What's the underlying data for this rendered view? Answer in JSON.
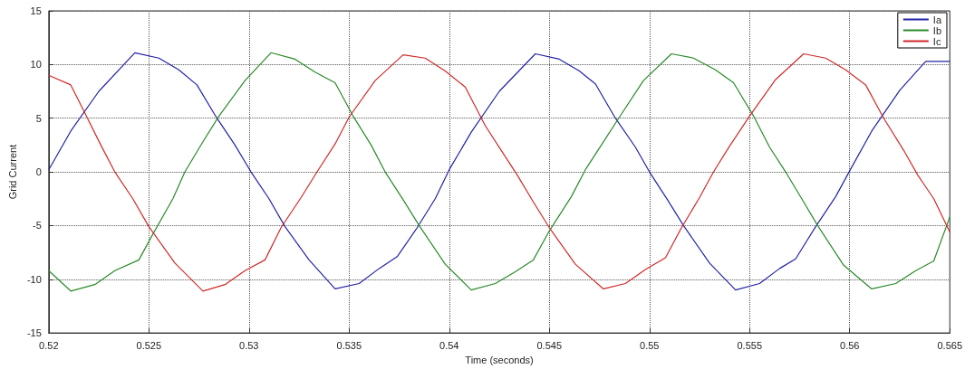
{
  "chart_data": {
    "type": "line",
    "xlabel": "Time (seconds)",
    "ylabel": "Grid Current",
    "xlim": [
      0.52,
      0.565
    ],
    "xticks": [
      0.52,
      0.525,
      0.53,
      0.535,
      0.54,
      0.545,
      0.55,
      0.555,
      0.56,
      0.565
    ],
    "ylim": [
      -15,
      15
    ],
    "yticks": [
      -15,
      -10,
      -5,
      0,
      5,
      10,
      15
    ],
    "grid": true,
    "legend": "top right",
    "marker": "none",
    "line_style": "solid",
    "series": [
      {
        "name": "Ia",
        "color": "#2323a8",
        "x": [
          0.52,
          0.5211,
          0.5225,
          0.5243,
          0.5255,
          0.5265,
          0.5274,
          0.5284,
          0.5293,
          0.5301,
          0.531,
          0.5318,
          0.533,
          0.5343,
          0.5355,
          0.5365,
          0.5374,
          0.5384,
          0.5393,
          0.54,
          0.5411,
          0.5425,
          0.5443,
          0.5455,
          0.5465,
          0.5473,
          0.5483,
          0.5493,
          0.55,
          0.5509,
          0.5517,
          0.553,
          0.5543,
          0.5555,
          0.5565,
          0.5573,
          0.5583,
          0.5593,
          0.56,
          0.5611,
          0.5625,
          0.5638,
          0.565
        ],
        "values": [
          0.2,
          3.8,
          7.5,
          11.1,
          10.6,
          9.5,
          8.1,
          5.0,
          2.5,
          0.0,
          -2.5,
          -5.1,
          -8.2,
          -10.9,
          -10.4,
          -9.0,
          -7.9,
          -5.2,
          -2.5,
          0.2,
          3.7,
          7.5,
          11.0,
          10.5,
          9.4,
          8.2,
          5.0,
          2.3,
          0.0,
          -2.6,
          -5.0,
          -8.5,
          -11.0,
          -10.4,
          -9.0,
          -8.1,
          -5.1,
          -2.3,
          0.1,
          3.8,
          7.6,
          10.3,
          10.3
        ]
      },
      {
        "name": "Ib",
        "color": "#2a8a2a",
        "x": [
          0.52,
          0.5211,
          0.5223,
          0.5233,
          0.5245,
          0.5252,
          0.5262,
          0.5268,
          0.5277,
          0.5285,
          0.5298,
          0.5311,
          0.5323,
          0.5333,
          0.5343,
          0.5352,
          0.5361,
          0.5368,
          0.5377,
          0.5385,
          0.5398,
          0.5411,
          0.5423,
          0.5433,
          0.5442,
          0.545,
          0.5461,
          0.5468,
          0.5477,
          0.5485,
          0.5497,
          0.5511,
          0.5522,
          0.5533,
          0.5542,
          0.5552,
          0.556,
          0.5568,
          0.5577,
          0.5584,
          0.5597,
          0.5611,
          0.5623,
          0.5633,
          0.5642,
          0.565
        ],
        "values": [
          -9.2,
          -11.1,
          -10.5,
          -9.2,
          -8.2,
          -5.8,
          -2.5,
          0.0,
          2.8,
          5.2,
          8.5,
          11.1,
          10.5,
          9.3,
          8.3,
          5.2,
          2.5,
          0.0,
          -2.6,
          -5.0,
          -8.6,
          -11.0,
          -10.4,
          -9.3,
          -8.2,
          -5.5,
          -2.3,
          0.2,
          2.8,
          5.1,
          8.5,
          11.0,
          10.6,
          9.5,
          8.3,
          5.2,
          2.3,
          0.0,
          -2.8,
          -5.0,
          -8.7,
          -10.9,
          -10.4,
          -9.2,
          -8.3,
          -4.2
        ]
      },
      {
        "name": "Ic",
        "color": "#d02a2a",
        "x": [
          0.52,
          0.5211,
          0.5218,
          0.5226,
          0.5233,
          0.5242,
          0.525,
          0.5263,
          0.5277,
          0.5288,
          0.5298,
          0.5308,
          0.5316,
          0.5326,
          0.5334,
          0.5343,
          0.535,
          0.5363,
          0.5377,
          0.5388,
          0.5398,
          0.5408,
          0.5418,
          0.5426,
          0.5434,
          0.5442,
          0.545,
          0.5463,
          0.5477,
          0.5488,
          0.5498,
          0.5508,
          0.5516,
          0.5525,
          0.5532,
          0.554,
          0.555,
          0.5563,
          0.5577,
          0.5588,
          0.5598,
          0.5608,
          0.5617,
          0.5627,
          0.5634,
          0.5642,
          0.565
        ],
        "values": [
          9.0,
          8.1,
          5.5,
          2.5,
          0.0,
          -2.5,
          -5.1,
          -8.5,
          -11.1,
          -10.5,
          -9.2,
          -8.2,
          -5.2,
          -2.4,
          0.0,
          2.6,
          5.1,
          8.5,
          10.9,
          10.6,
          9.4,
          7.9,
          4.3,
          2.0,
          -0.3,
          -2.8,
          -5.2,
          -8.6,
          -10.9,
          -10.4,
          -9.1,
          -8.0,
          -5.2,
          -2.4,
          0.0,
          2.4,
          5.2,
          8.6,
          11.0,
          10.6,
          9.5,
          8.1,
          5.0,
          2.0,
          -0.3,
          -2.5,
          -5.6
        ]
      }
    ]
  }
}
